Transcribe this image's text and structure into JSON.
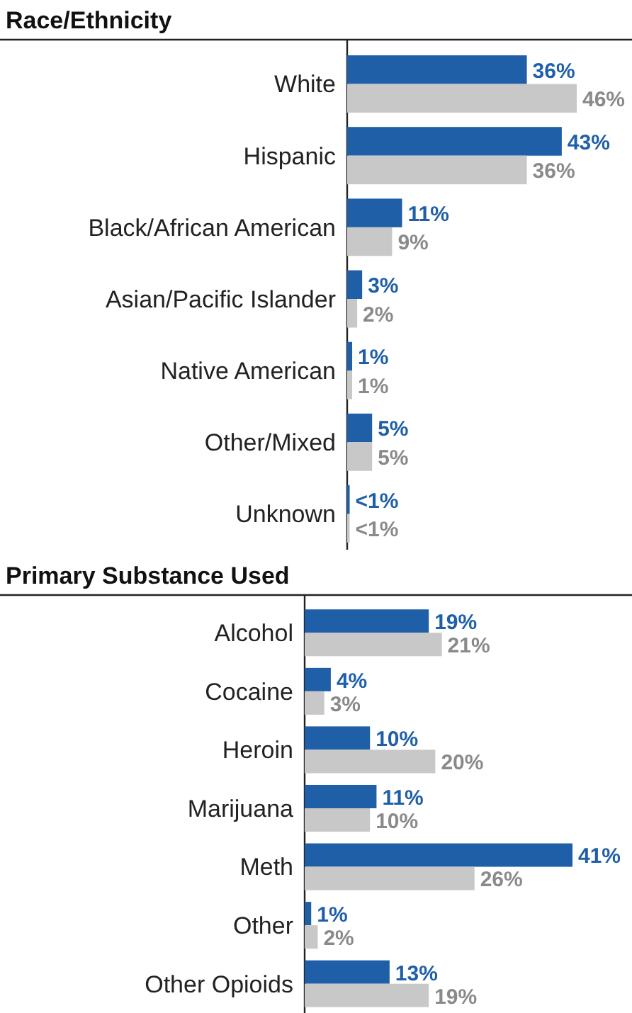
{
  "chart_data": [
    {
      "type": "bar",
      "orientation": "horizontal",
      "title": "Race/Ethnicity",
      "categories": [
        "White",
        "Hispanic",
        "Black/African American",
        "Asian/Pacific Islander",
        "Native American",
        "Other/Mixed",
        "Unknown"
      ],
      "series": [
        {
          "color": "#1f5fa8",
          "values": [
            36,
            43,
            11,
            3,
            1,
            5,
            0.5
          ],
          "value_labels": [
            "36%",
            "43%",
            "11%",
            "3%",
            "1%",
            "5%",
            "<1%"
          ]
        },
        {
          "color": "#c8c8c8",
          "values": [
            46,
            36,
            9,
            2,
            1,
            5,
            0.5
          ],
          "value_labels": [
            "46%",
            "36%",
            "9%",
            "2%",
            "1%",
            "5%",
            "<1%"
          ]
        }
      ]
    },
    {
      "type": "bar",
      "orientation": "horizontal",
      "title": "Primary Substance Used",
      "categories": [
        "Alcohol",
        "Cocaine",
        "Heroin",
        "Marijuana",
        "Meth",
        "Other",
        "Other Opioids"
      ],
      "series": [
        {
          "color": "#1f5fa8",
          "values": [
            19,
            4,
            10,
            11,
            41,
            1,
            13
          ],
          "value_labels": [
            "19%",
            "4%",
            "10%",
            "11%",
            "41%",
            "1%",
            "13%"
          ]
        },
        {
          "color": "#c8c8c8",
          "values": [
            21,
            3,
            20,
            10,
            26,
            2,
            19
          ],
          "value_labels": [
            "21%",
            "3%",
            "20%",
            "10%",
            "26%",
            "2%",
            "19%"
          ]
        }
      ]
    }
  ]
}
